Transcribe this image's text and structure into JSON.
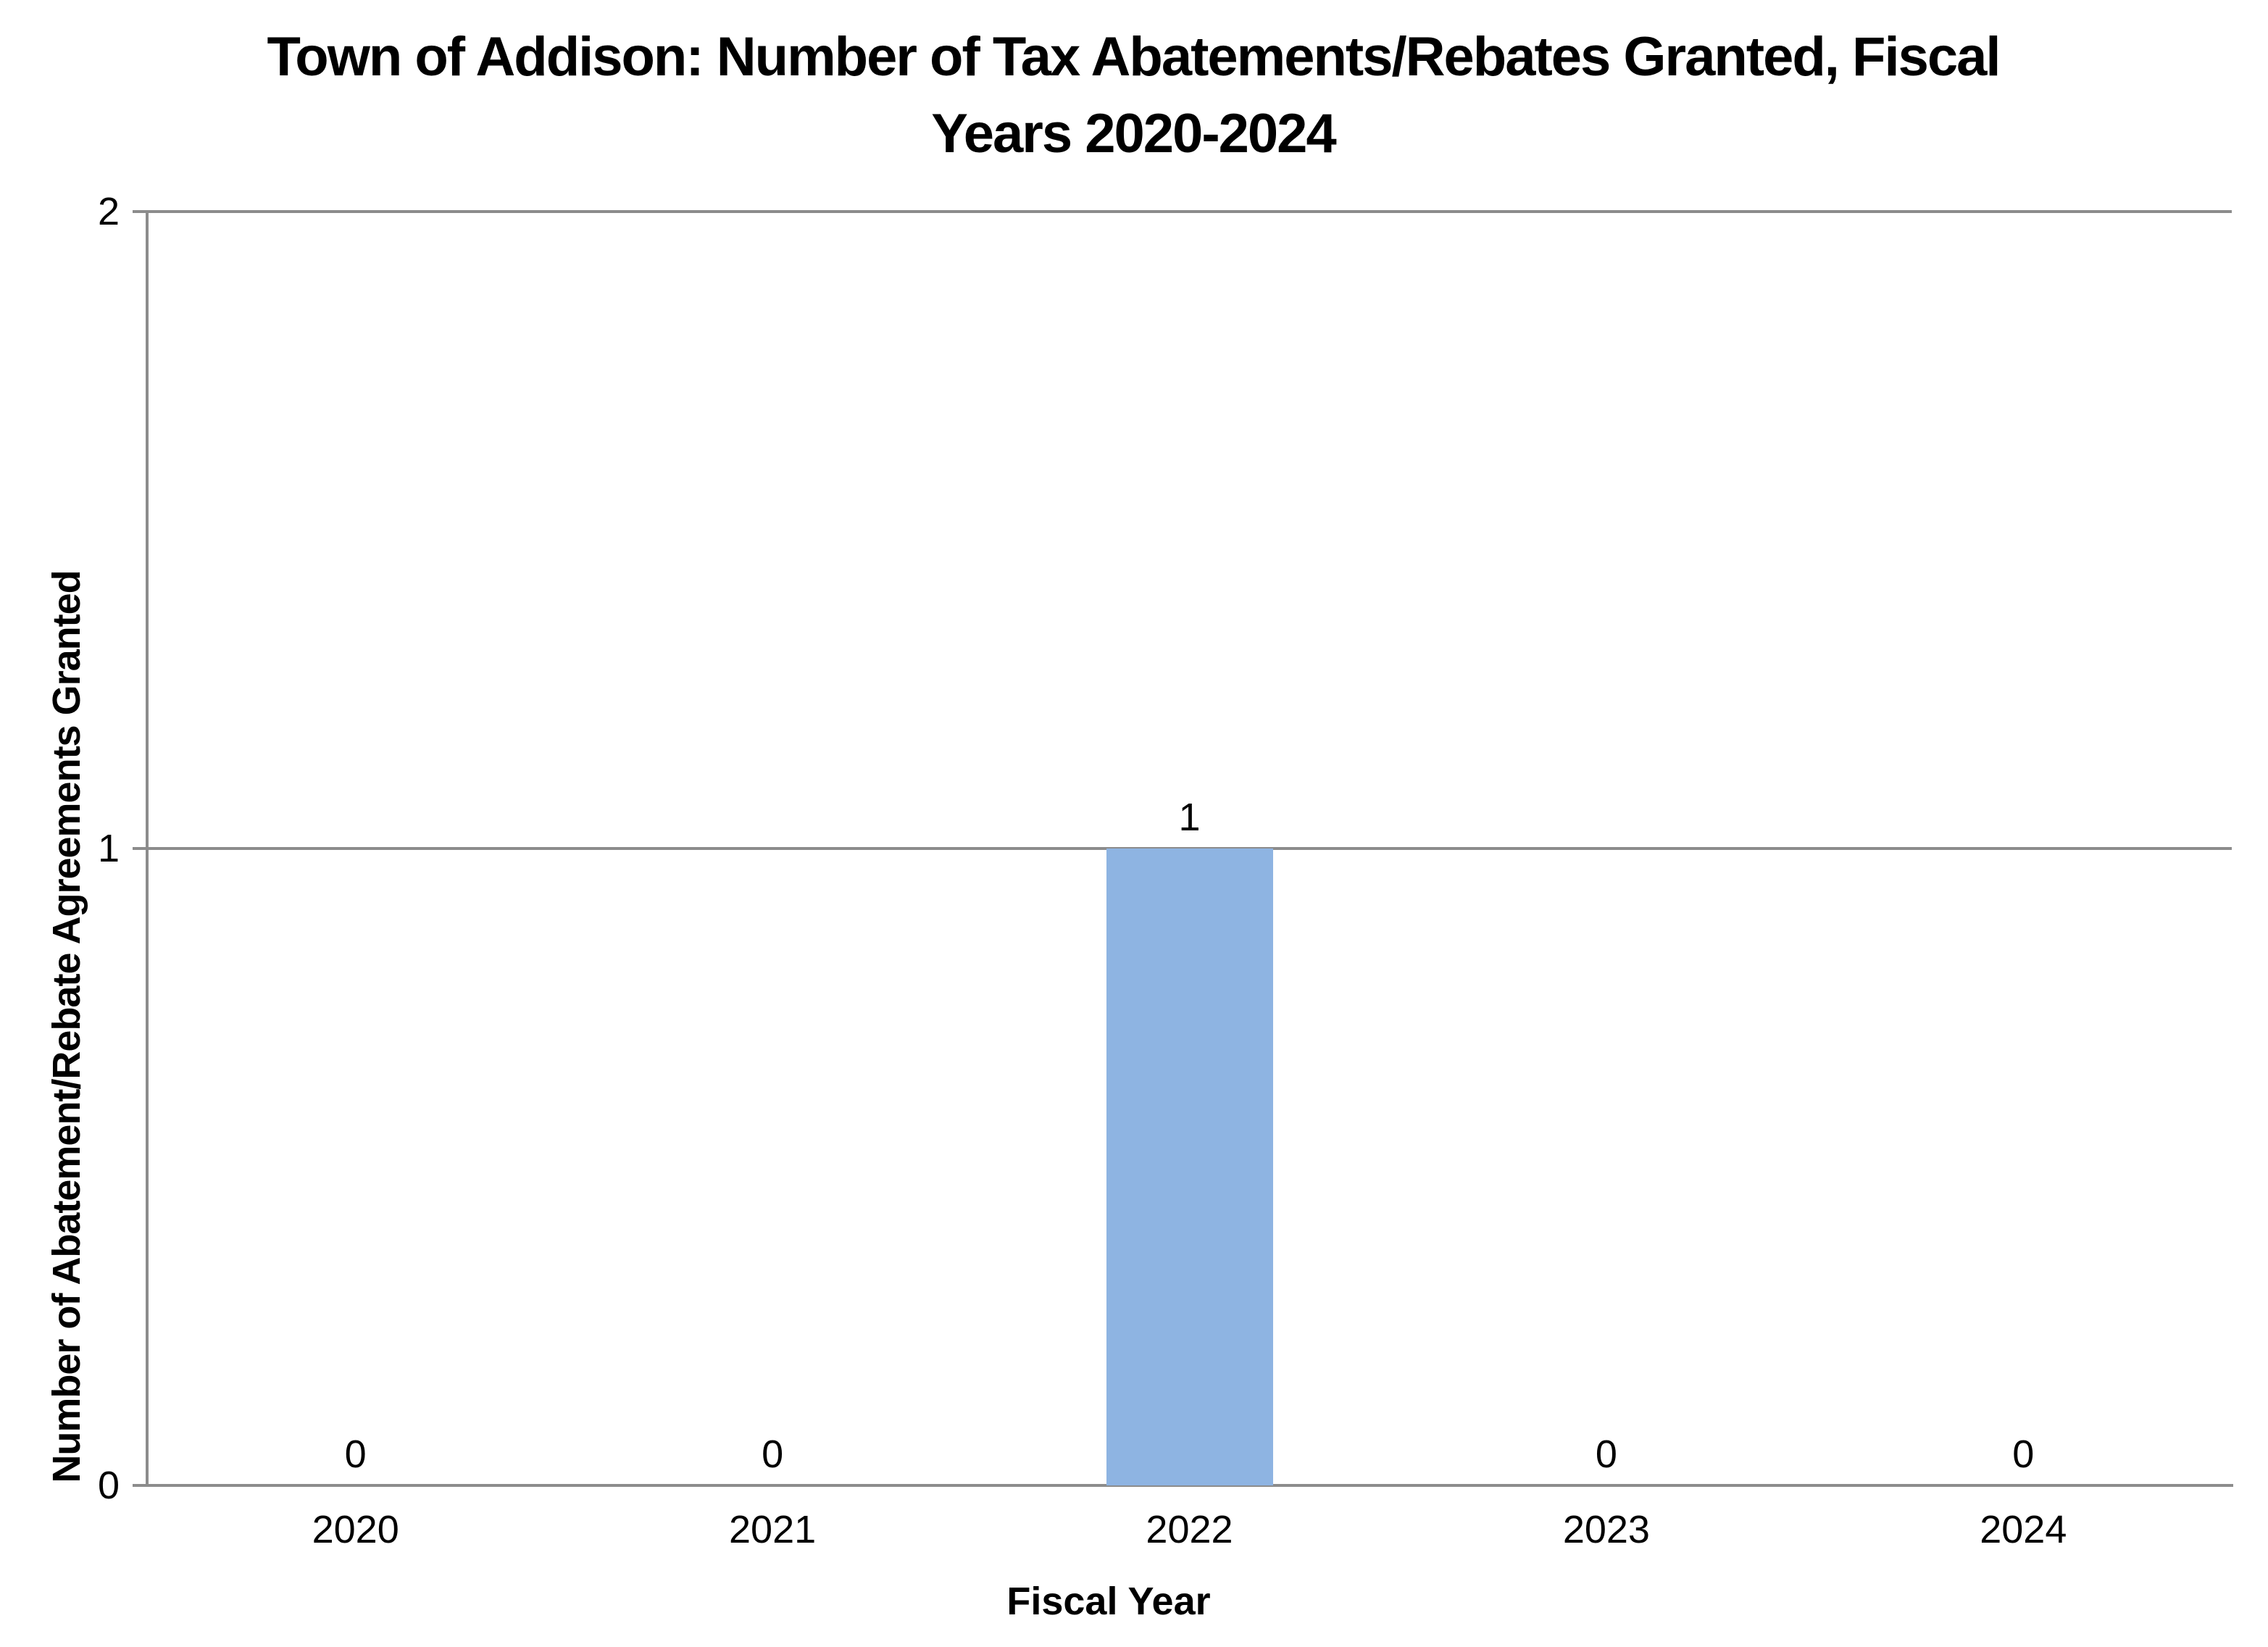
{
  "chart_data": {
    "type": "bar",
    "title": "Town of Addison: Number of Tax Abatements/Rebates Granted, Fiscal Years 2020-2024",
    "title_lines": [
      "Town of Addison: Number of Tax Abatements/Rebates Granted, Fiscal",
      "Years 2020-2024"
    ],
    "categories": [
      "2020",
      "2021",
      "2022",
      "2023",
      "2024"
    ],
    "values": [
      0,
      0,
      1,
      0,
      0
    ],
    "data_labels": [
      "0",
      "0",
      "1",
      "0",
      "0"
    ],
    "xlabel": "Fiscal Year",
    "ylabel": "Number of Abatement/Rebate Agreements Granted",
    "ylim": [
      0,
      2
    ],
    "yticks": [
      0,
      1,
      2
    ],
    "grid": "horizontal",
    "legend_position": "none",
    "colors": {
      "bar": "#8EB4E2",
      "axis": "#8C8C8C",
      "gridline": "#8C8C8C",
      "text": "#000000",
      "background": "#FFFFFF"
    }
  }
}
